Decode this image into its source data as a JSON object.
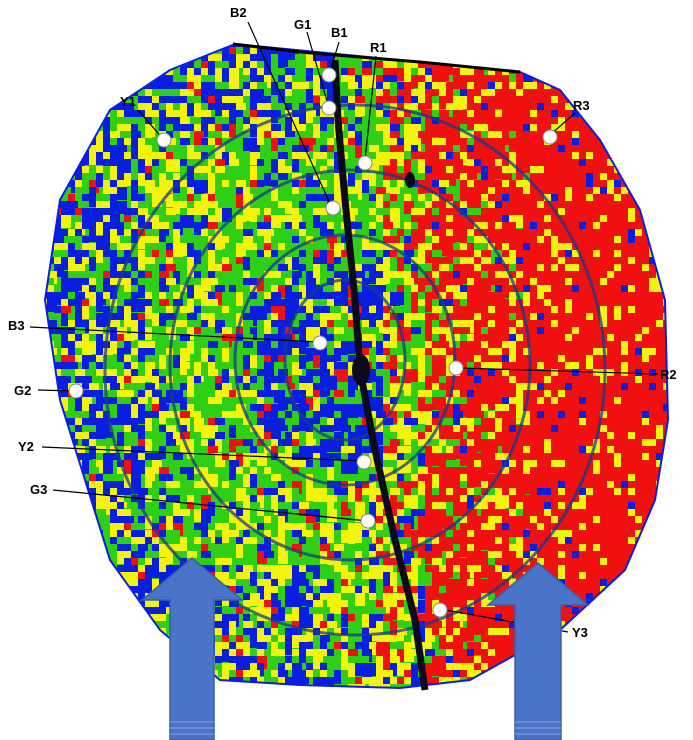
{
  "colors": {
    "blue": "#0a1ee0",
    "green": "#2ecf14",
    "yellow": "#f4f40a",
    "red": "#f01010",
    "ring": "#1a3a8a",
    "arrow": "#4a74c8",
    "crack": "#0a0a1a"
  },
  "markers": [
    {
      "id": "b2",
      "label": "B2"
    },
    {
      "id": "g1",
      "label": "G1"
    },
    {
      "id": "b1",
      "label": "B1"
    },
    {
      "id": "r1",
      "label": "R1"
    },
    {
      "id": "y1",
      "label": "Y1"
    },
    {
      "id": "r3",
      "label": "R3"
    },
    {
      "id": "b3",
      "label": "B3"
    },
    {
      "id": "r2",
      "label": "R2"
    },
    {
      "id": "g2",
      "label": "G2"
    },
    {
      "id": "y2",
      "label": "Y2"
    },
    {
      "id": "g3",
      "label": "G3"
    },
    {
      "id": "y3",
      "label": "Y3"
    }
  ],
  "arrows": [
    {
      "id": "left-arrow",
      "direction": "up"
    },
    {
      "id": "right-arrow",
      "direction": "up"
    }
  ]
}
